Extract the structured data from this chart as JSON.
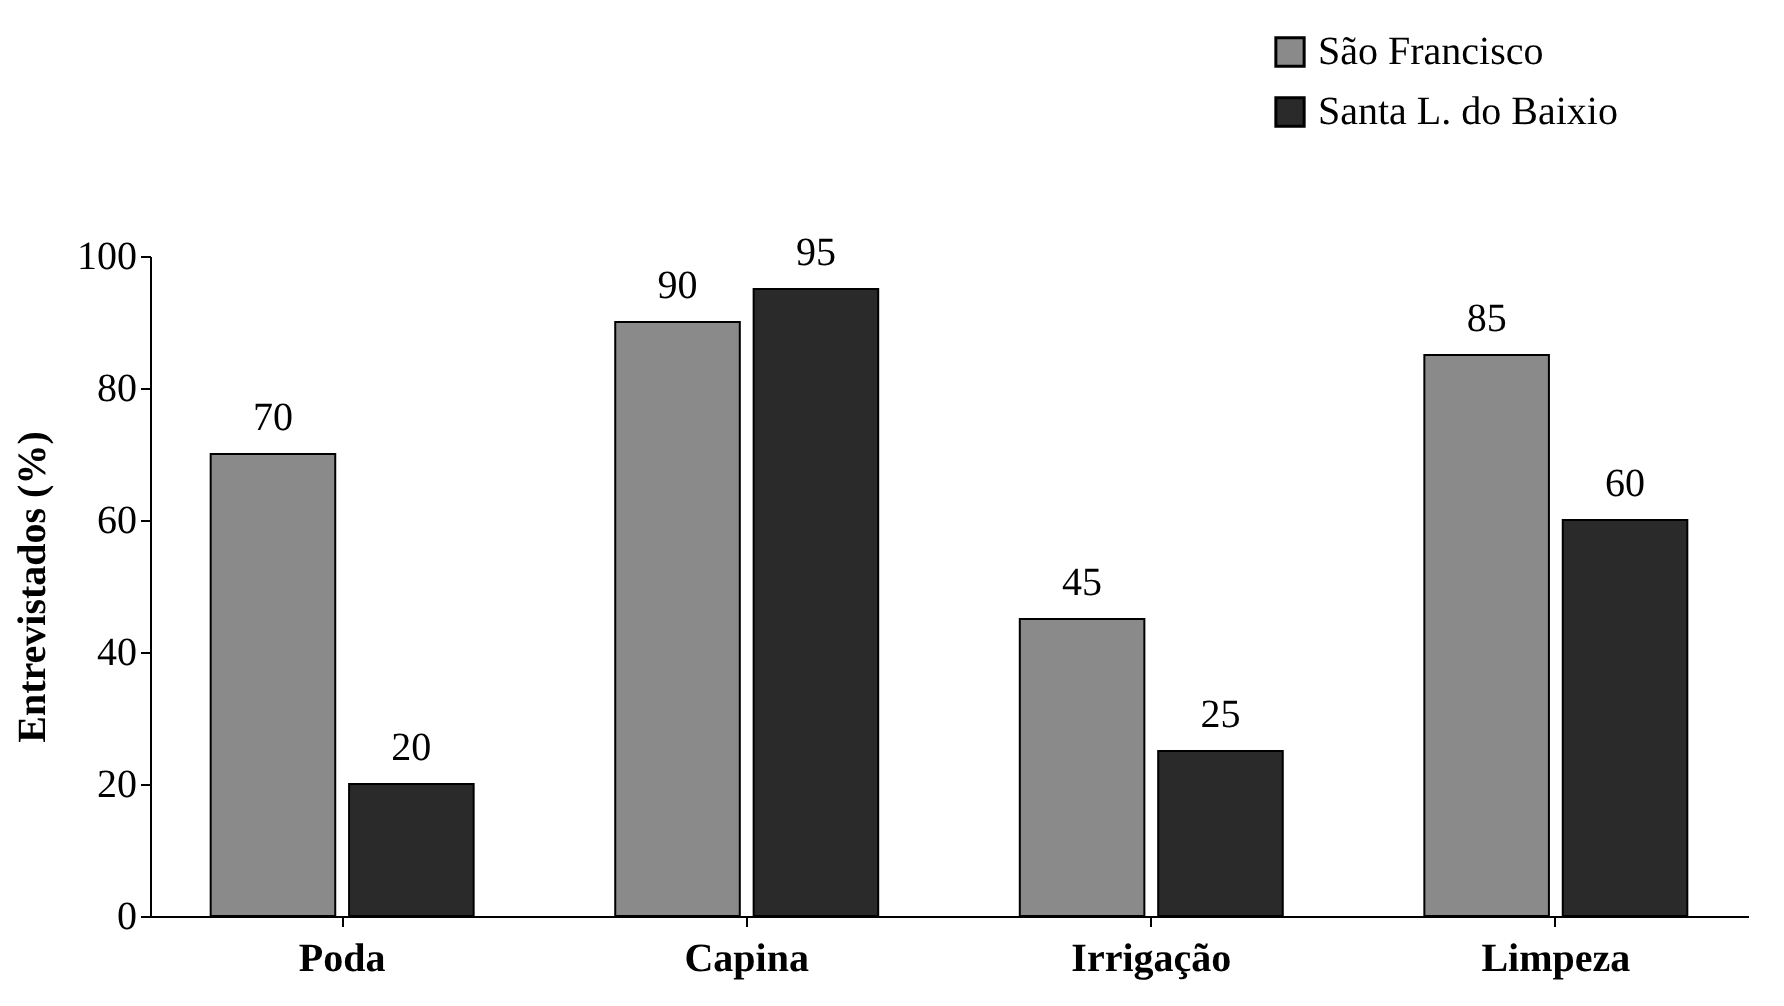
{
  "chart_data": {
    "type": "bar",
    "ylabel": "Entrevistados (%)",
    "categories": [
      "Poda",
      "Capina",
      "Irrigação",
      "Limpeza"
    ],
    "series": [
      {
        "name": "São Francisco",
        "color": "#8a8a8a",
        "values": [
          70,
          90,
          45,
          85
        ]
      },
      {
        "name": "Santa L. do Baixio",
        "color": "#2a2a2a",
        "values": [
          20,
          95,
          25,
          60
        ]
      }
    ],
    "ylim": [
      0,
      100
    ],
    "yticks": [
      0,
      20,
      40,
      60,
      80,
      100
    ],
    "grid": false,
    "legend": "top right",
    "data_labels": true
  }
}
